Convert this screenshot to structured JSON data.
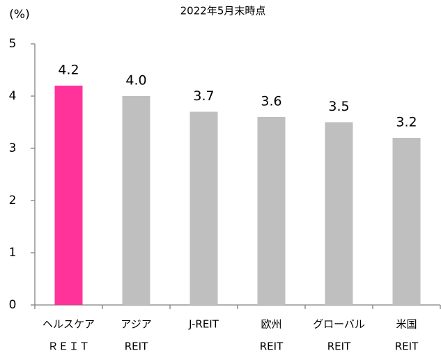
{
  "chart_data": {
    "type": "bar",
    "title": "2022年5月末時点",
    "y_label": "(%)",
    "categories": [
      [
        "ヘルスケア",
        "ＲＥＩＴ"
      ],
      [
        "アジア",
        "REIT"
      ],
      [
        "J-REIT"
      ],
      [
        "欧州",
        "REIT"
      ],
      [
        "グローバル",
        "REIT"
      ],
      [
        "米国",
        "REIT"
      ]
    ],
    "values": [
      4.2,
      4.0,
      3.7,
      3.6,
      3.5,
      3.2
    ],
    "value_labels": [
      "4.2",
      "4.0",
      "3.7",
      "3.6",
      "3.5",
      "3.2"
    ],
    "colors": [
      "#ff3399",
      "#bfbfbf",
      "#bfbfbf",
      "#bfbfbf",
      "#bfbfbf",
      "#bfbfbf"
    ],
    "ylim": [
      0,
      5
    ],
    "yticks": [
      0,
      1,
      2,
      3,
      4,
      5
    ]
  }
}
